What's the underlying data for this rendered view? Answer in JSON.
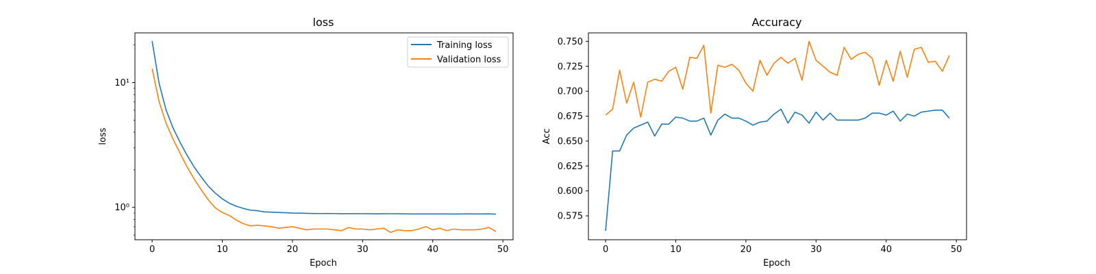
{
  "chart_data": [
    {
      "type": "line",
      "title": "loss",
      "xlabel": "Epoch",
      "ylabel": "loss",
      "yscale": "log",
      "xlim": [
        -2.45,
        51.45
      ],
      "ylim": [
        0.55,
        25
      ],
      "xticks": [
        0,
        10,
        20,
        30,
        40,
        50
      ],
      "xtick_labels": [
        "0",
        "10",
        "20",
        "30",
        "40",
        "50"
      ],
      "yticks": [
        1,
        10
      ],
      "ytick_labels": [
        "10⁰",
        "10¹"
      ],
      "legend": "top-right",
      "series": [
        {
          "name": "Training loss",
          "color": "#1f77b4",
          "values": [
            21.5,
            9.8,
            6.0,
            4.3,
            3.3,
            2.6,
            2.1,
            1.75,
            1.48,
            1.3,
            1.17,
            1.08,
            1.02,
            0.98,
            0.95,
            0.94,
            0.92,
            0.915,
            0.91,
            0.905,
            0.9,
            0.898,
            0.895,
            0.893,
            0.892,
            0.893,
            0.892,
            0.888,
            0.89,
            0.89,
            0.889,
            0.888,
            0.887,
            0.888,
            0.889,
            0.888,
            0.887,
            0.886,
            0.886,
            0.885,
            0.886,
            0.885,
            0.886,
            0.884,
            0.886,
            0.887,
            0.886,
            0.885,
            0.887,
            0.883
          ]
        },
        {
          "name": "Validation loss",
          "color": "#ff7f0e",
          "values": [
            12.9,
            7.0,
            4.7,
            3.5,
            2.7,
            2.1,
            1.68,
            1.38,
            1.15,
            0.99,
            0.91,
            0.86,
            0.79,
            0.74,
            0.71,
            0.72,
            0.71,
            0.7,
            0.68,
            0.69,
            0.7,
            0.68,
            0.66,
            0.67,
            0.67,
            0.67,
            0.66,
            0.65,
            0.69,
            0.67,
            0.67,
            0.66,
            0.67,
            0.68,
            0.63,
            0.66,
            0.65,
            0.65,
            0.67,
            0.7,
            0.66,
            0.68,
            0.65,
            0.67,
            0.66,
            0.66,
            0.66,
            0.67,
            0.69,
            0.64
          ]
        }
      ]
    },
    {
      "type": "line",
      "title": "Accuracy",
      "xlabel": "Epoch",
      "ylabel": "Acc",
      "yscale": "linear",
      "xlim": [
        -2.45,
        51.45
      ],
      "ylim": [
        0.551,
        0.7585
      ],
      "xticks": [
        0,
        10,
        20,
        30,
        40,
        50
      ],
      "xtick_labels": [
        "0",
        "10",
        "20",
        "30",
        "40",
        "50"
      ],
      "yticks": [
        0.575,
        0.6,
        0.625,
        0.65,
        0.675,
        0.7,
        0.725,
        0.75
      ],
      "ytick_labels": [
        "0.575",
        "0.600",
        "0.625",
        "0.650",
        "0.675",
        "0.700",
        "0.725",
        "0.750"
      ],
      "legend": "none",
      "series": [
        {
          "color": "#1f77b4",
          "values": [
            0.56,
            0.64,
            0.64,
            0.656,
            0.663,
            0.666,
            0.669,
            0.655,
            0.667,
            0.667,
            0.674,
            0.673,
            0.67,
            0.67,
            0.673,
            0.656,
            0.671,
            0.677,
            0.673,
            0.673,
            0.67,
            0.666,
            0.669,
            0.67,
            0.677,
            0.682,
            0.668,
            0.679,
            0.676,
            0.668,
            0.679,
            0.671,
            0.678,
            0.671,
            0.671,
            0.671,
            0.671,
            0.673,
            0.678,
            0.678,
            0.676,
            0.68,
            0.67,
            0.677,
            0.675,
            0.679,
            0.68,
            0.681,
            0.681,
            0.673
          ]
        },
        {
          "color": "#ff7f0e",
          "values": [
            0.676,
            0.682,
            0.721,
            0.688,
            0.709,
            0.674,
            0.709,
            0.712,
            0.71,
            0.72,
            0.724,
            0.702,
            0.734,
            0.733,
            0.746,
            0.678,
            0.726,
            0.724,
            0.727,
            0.721,
            0.708,
            0.7,
            0.731,
            0.716,
            0.728,
            0.734,
            0.728,
            0.733,
            0.711,
            0.75,
            0.731,
            0.725,
            0.719,
            0.716,
            0.744,
            0.732,
            0.737,
            0.739,
            0.733,
            0.706,
            0.731,
            0.71,
            0.74,
            0.714,
            0.742,
            0.744,
            0.729,
            0.73,
            0.72,
            0.736
          ]
        }
      ]
    }
  ]
}
